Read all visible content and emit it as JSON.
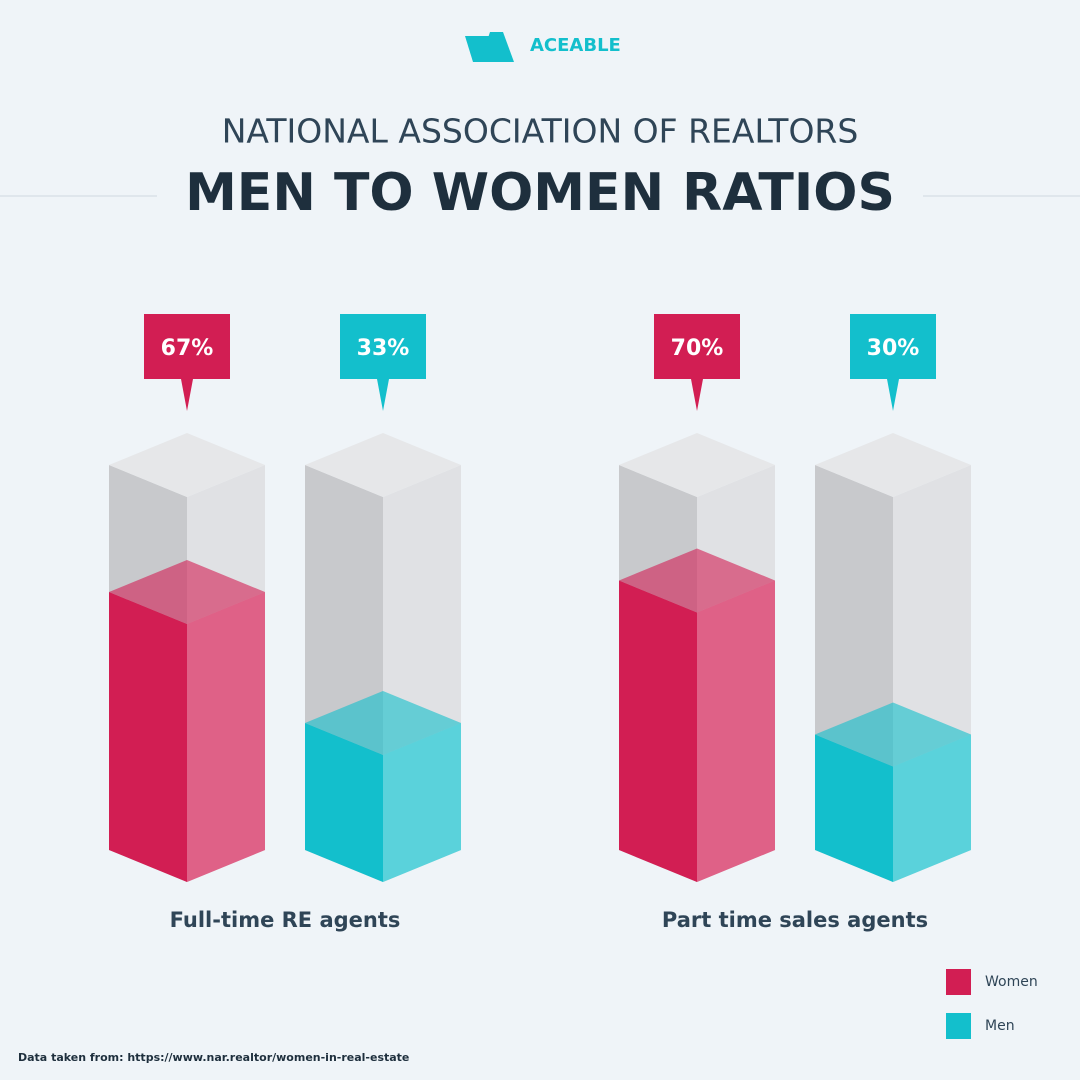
{
  "logo": "ACEABLE",
  "source": "Data taken from: https://www.nar.realtor/women-in-real-estate",
  "chart_data": {
    "type": "bar3d",
    "subtitle": "NATIONAL ASSOCIATION OF REALTORS",
    "title": "MEN TO WOMEN RATIOS",
    "categories": [
      "Full-time RE agents",
      "Part time sales agents"
    ],
    "series": [
      {
        "name": "Women",
        "color": "#d21e53",
        "values": [
          67,
          70
        ],
        "value_labels": [
          "67%",
          "70%"
        ]
      },
      {
        "name": "Men",
        "color": "#13bfcc",
        "values": [
          33,
          30
        ],
        "value_labels": [
          "33%",
          "30%"
        ]
      }
    ],
    "ylim": [
      0,
      100
    ],
    "legend": "bottom-right"
  }
}
